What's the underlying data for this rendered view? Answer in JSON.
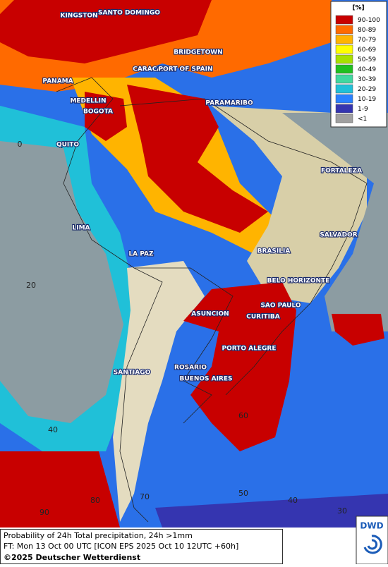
{
  "legend": {
    "title": "[%]",
    "items": [
      {
        "label": "90-100",
        "color": "#c80000"
      },
      {
        "label": "80-89",
        "color": "#ff6a00"
      },
      {
        "label": "70-79",
        "color": "#ffb400"
      },
      {
        "label": "60-69",
        "color": "#ffff00"
      },
      {
        "label": "50-59",
        "color": "#a8e000"
      },
      {
        "label": "40-49",
        "color": "#20c020"
      },
      {
        "label": "30-39",
        "color": "#40d8a0"
      },
      {
        "label": "20-29",
        "color": "#20c0d8"
      },
      {
        "label": "10-19",
        "color": "#2a80ff"
      },
      {
        "label": "1-9",
        "color": "#3535b0"
      },
      {
        "label": "<1",
        "color": "#a0a0a0"
      }
    ]
  },
  "cities": [
    "KINGSTON",
    "SANTO DOMINGO",
    "BRIDGETOWN",
    "CARACAS",
    "PORT OF SPAIN",
    "PANAMA",
    "MEDELLIN",
    "BOGOTA",
    "PARAMARIBO",
    "QUITO",
    "FORTALEZA",
    "LIMA",
    "SALVADOR",
    "LA PAZ",
    "BRASILIA",
    "BELO HORIZONTE",
    "SAO PAULO",
    "ASUNCION",
    "CURITIBA",
    "PORTO ALEGRE",
    "SANTIAGO",
    "ROSARIO",
    "BUENOS AIRES"
  ],
  "grid_labels": [
    "0",
    "20",
    "40",
    "90",
    "80",
    "70",
    "60",
    "50",
    "40",
    "30"
  ],
  "footer": {
    "line1": "Probability of 24h Total precipitation, 24h >1mm",
    "line2": "FT: Mon 13 Oct 00 UTC [ICON EPS 2025 Oct 10 12UTC +60h]",
    "line3": "©2025 Deutscher Wetterdienst",
    "logo": "DWD"
  }
}
